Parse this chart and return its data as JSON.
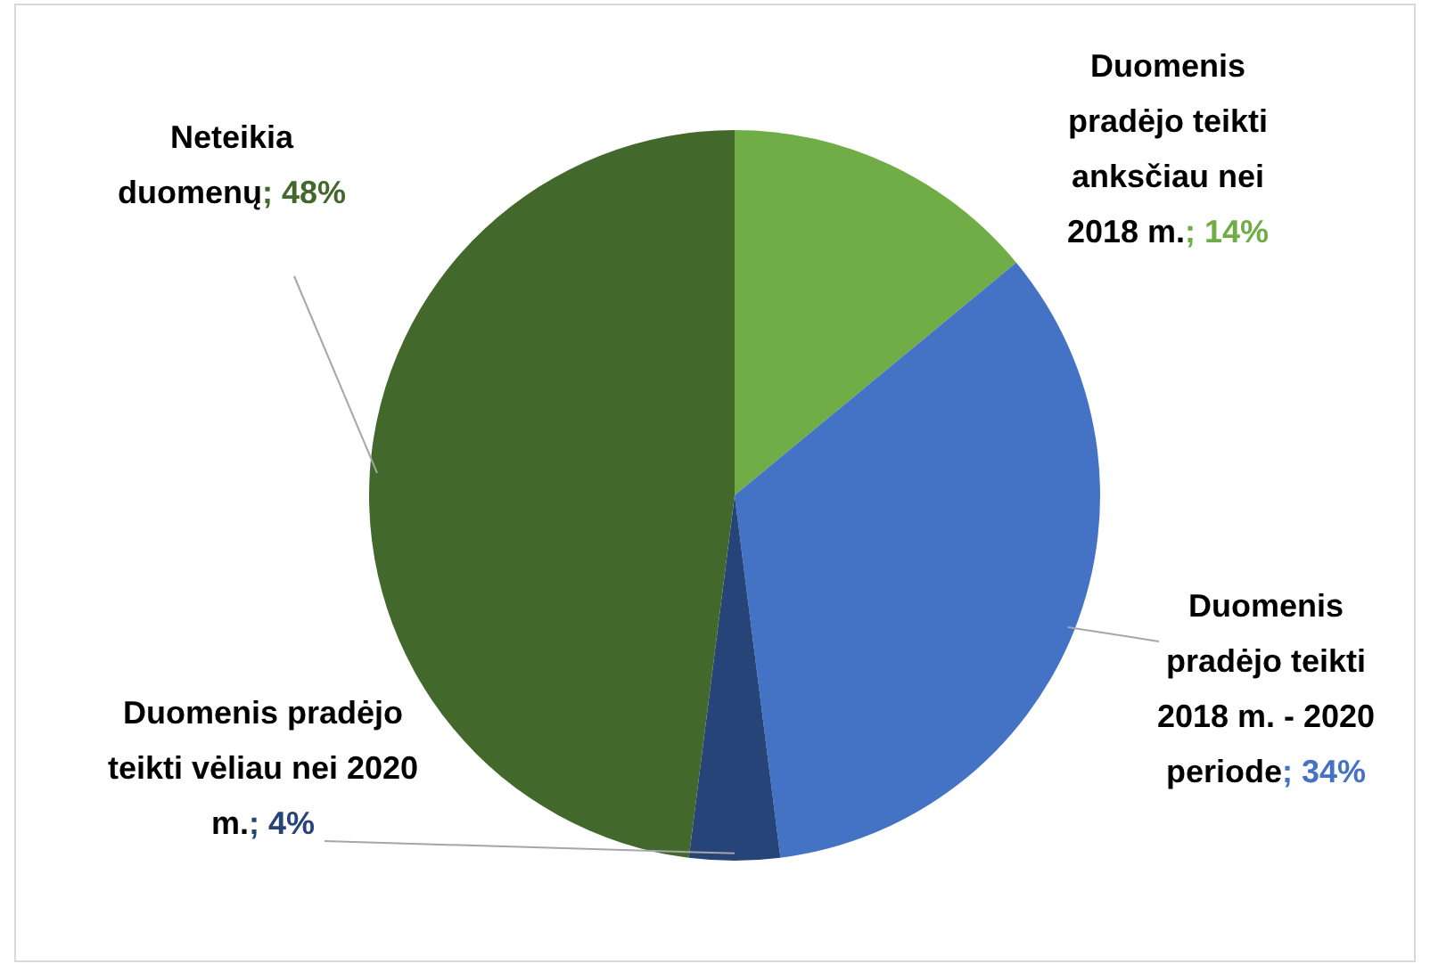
{
  "chart_data": {
    "type": "pie",
    "categories": [
      "Duomenis pradėjo teikti anksčiau nei 2018 m.",
      "Duomenis pradėjo teikti 2018 m. - 2020 periode",
      "Duomenis pradėjo teikti vėliau nei 2020 m.",
      "Neteikia duomenų"
    ],
    "values": [
      14,
      34,
      4,
      48
    ],
    "colors": [
      "#70ad47",
      "#4472c4",
      "#264478",
      "#43682b"
    ],
    "value_labels": [
      "; 14%",
      "; 34%",
      "; 4%",
      "; 48%"
    ],
    "legend": false
  }
}
